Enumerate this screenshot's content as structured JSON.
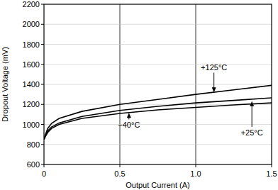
{
  "chart_data": {
    "type": "line",
    "x_label": "Output Current (A)",
    "y_label": "Dropout Voltage (mV)",
    "xlim": [
      0,
      1.5
    ],
    "xticks": [
      0,
      0.5,
      {
        "value": 1,
        "label": "1.0"
      },
      1.5
    ],
    "ylim": [
      600,
      2200
    ],
    "yticks": [
      600,
      800,
      1000,
      1200,
      1400,
      1600,
      1800,
      2000,
      2200
    ],
    "grid": true,
    "series": [
      {
        "name": "+125°C",
        "color": "#000000",
        "x": [
          0,
          0.01,
          0.025,
          0.05,
          0.1,
          0.25,
          0.5,
          0.75,
          1.0,
          1.25,
          1.5
        ],
        "values": [
          850,
          900,
          960,
          1010,
          1060,
          1130,
          1200,
          1250,
          1300,
          1345,
          1390
        ]
      },
      {
        "name": "+25°C",
        "color": "#000000",
        "x": [
          0,
          0.01,
          0.025,
          0.05,
          0.1,
          0.25,
          0.5,
          0.75,
          1.0,
          1.25,
          1.5
        ],
        "values": [
          850,
          890,
          935,
          975,
          1015,
          1080,
          1140,
          1180,
          1215,
          1240,
          1265
        ]
      },
      {
        "name": "−40°C",
        "color": "#000000",
        "x": [
          0,
          0.01,
          0.025,
          0.05,
          0.1,
          0.25,
          0.5,
          0.75,
          1.0,
          1.25,
          1.5
        ],
        "values": [
          850,
          880,
          920,
          960,
          1000,
          1060,
          1110,
          1145,
          1170,
          1195,
          1215
        ]
      }
    ],
    "annotations": [
      {
        "text": "+125°C",
        "x": 1.12,
        "y": 1545,
        "arrow": [
          1.12,
          1320
        ]
      },
      {
        "text": "−40°C",
        "x": 0.56,
        "y": 965,
        "arrow": [
          0.56,
          1115
        ]
      },
      {
        "text": "+25°C",
        "x": 1.37,
        "y": 890,
        "arrow": [
          1.37,
          1232
        ]
      }
    ]
  }
}
